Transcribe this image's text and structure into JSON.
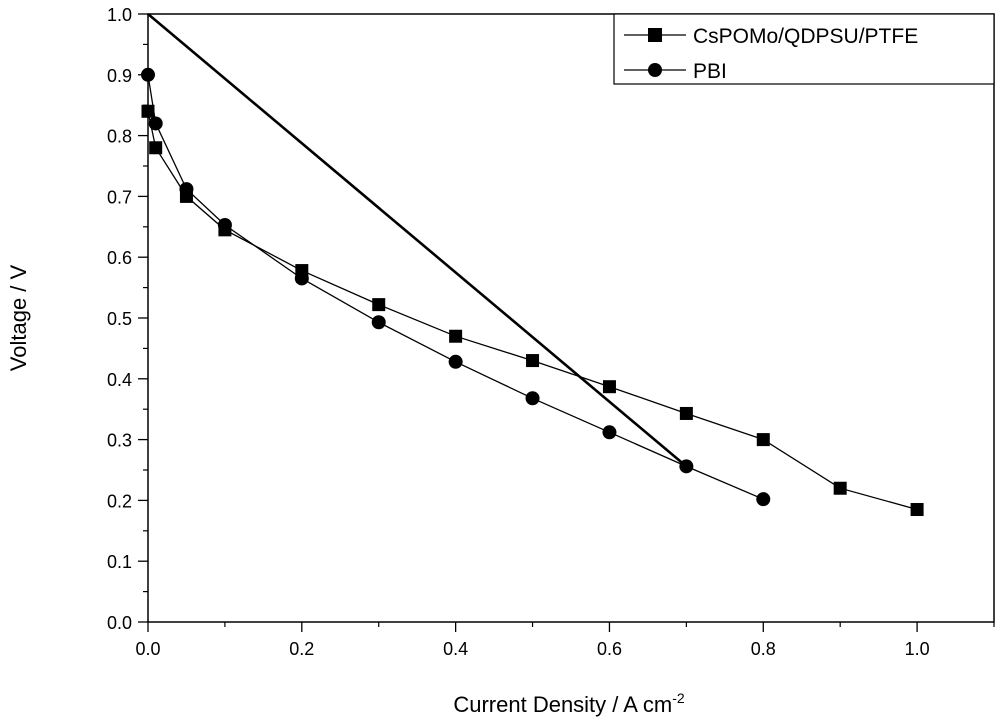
{
  "chart_data": {
    "type": "line",
    "title": "",
    "xlabel": "Current Density / A cm",
    "xlabel_sup": "-2",
    "ylabel": "Voltage / V",
    "xlim": [
      0,
      1.1
    ],
    "ylim": [
      0,
      1.0
    ],
    "grid": false,
    "legend_position": "top-right",
    "x_ticks": [
      0.0,
      0.2,
      0.4,
      0.6,
      0.8,
      1.0
    ],
    "x_tick_labels": [
      "0.0",
      "0.2",
      "0.4",
      "0.6",
      "0.8",
      "1.0"
    ],
    "y_ticks": [
      0.0,
      0.1,
      0.2,
      0.3,
      0.4,
      0.5,
      0.6,
      0.7,
      0.8,
      0.9,
      1.0
    ],
    "y_tick_labels": [
      "0.0",
      "0.1",
      "0.2",
      "0.3",
      "0.4",
      "0.5",
      "0.6",
      "0.7",
      "0.8",
      "0.9",
      "1.0"
    ],
    "series": [
      {
        "name": "CsPOMo/QDPSU/PTFE",
        "marker": "square",
        "x": [
          0.0,
          0.01,
          0.05,
          0.1,
          0.2,
          0.3,
          0.4,
          0.5,
          0.6,
          0.7,
          0.8,
          0.9,
          1.0
        ],
        "y": [
          0.84,
          0.78,
          0.7,
          0.645,
          0.578,
          0.522,
          0.47,
          0.43,
          0.387,
          0.343,
          0.3,
          0.22,
          0.185
        ]
      },
      {
        "name": "PBI",
        "marker": "circle",
        "x": [
          0.0,
          0.01,
          0.05,
          0.1,
          0.2,
          0.3,
          0.4,
          0.5,
          0.6,
          0.7,
          0.8
        ],
        "y": [
          0.9,
          0.82,
          0.712,
          0.653,
          0.565,
          0.493,
          0.428,
          0.368,
          0.312,
          0.256,
          0.202
        ]
      }
    ],
    "annotations": [
      {
        "type": "straight-line",
        "x": [
          0.0,
          0.7
        ],
        "y": [
          1.0,
          0.256
        ]
      }
    ]
  }
}
